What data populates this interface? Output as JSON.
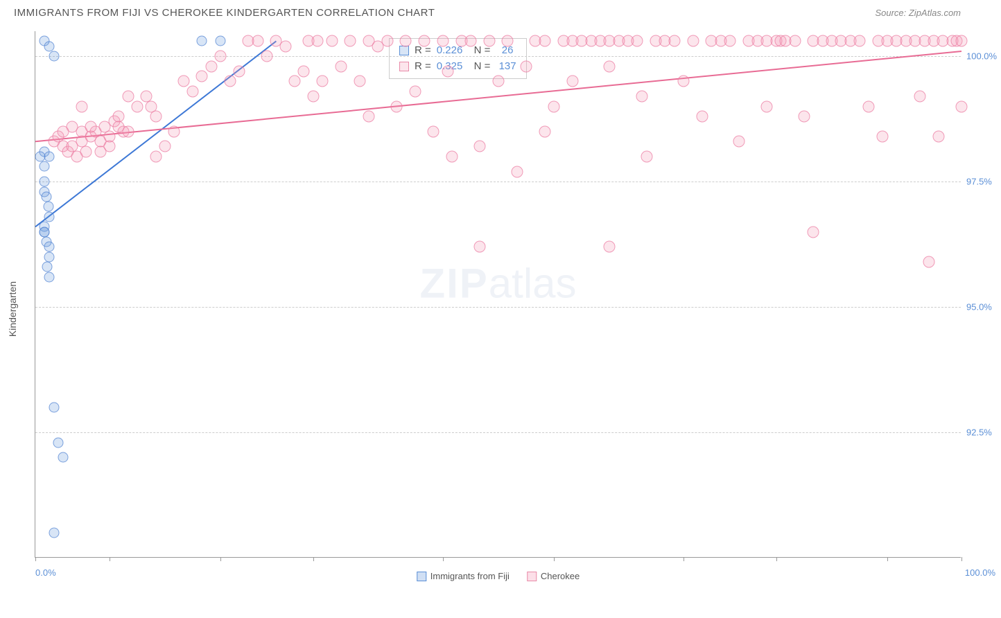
{
  "header": {
    "title": "IMMIGRANTS FROM FIJI VS CHEROKEE KINDERGARTEN CORRELATION CHART",
    "source": "Source: ZipAtlas.com"
  },
  "chart": {
    "type": "scatter",
    "ylabel": "Kindergarten",
    "background_color": "#ffffff",
    "grid_color": "#cccccc",
    "xlim": [
      0,
      100
    ],
    "ylim": [
      90,
      100.5
    ],
    "yticks": [
      {
        "value": 100.0,
        "label": "100.0%"
      },
      {
        "value": 97.5,
        "label": "97.5%"
      },
      {
        "value": 95.0,
        "label": "95.0%"
      },
      {
        "value": 92.5,
        "label": "92.5%"
      }
    ],
    "xtick_positions": [
      0,
      8,
      20,
      30,
      44,
      56,
      70,
      80,
      92,
      100
    ],
    "xaxis_labels": {
      "left": "0.0%",
      "right": "100.0%"
    },
    "marker_radius": 8,
    "series": [
      {
        "id": "fiji",
        "name": "Immigrants from Fiji",
        "color_fill": "rgba(100,150,220,0.25)",
        "color_stroke": "#5b8fd6",
        "R": 0.226,
        "N": 26,
        "trend": {
          "x1": 0,
          "y1": 96.6,
          "x2": 26,
          "y2": 100.3,
          "stroke": "#3d78d6",
          "width": 2
        },
        "points": [
          [
            1,
            100.3
          ],
          [
            1.5,
            100.2
          ],
          [
            2,
            100.0
          ],
          [
            18,
            100.3
          ],
          [
            20,
            100.3
          ],
          [
            1,
            97.5
          ],
          [
            1,
            97.3
          ],
          [
            1.2,
            97.2
          ],
          [
            1.4,
            97.0
          ],
          [
            1,
            96.6
          ],
          [
            1.5,
            96.8
          ],
          [
            1.2,
            96.3
          ],
          [
            1.5,
            96.2
          ],
          [
            1.5,
            96.0
          ],
          [
            1.3,
            95.8
          ],
          [
            1.5,
            95.6
          ],
          [
            1,
            98.1
          ],
          [
            1,
            97.8
          ],
          [
            1.5,
            98.0
          ],
          [
            2,
            93.0
          ],
          [
            2.5,
            92.3
          ],
          [
            3,
            92.0
          ],
          [
            2,
            90.5
          ],
          [
            1,
            96.5
          ],
          [
            1,
            96.5
          ],
          [
            0.5,
            98.0
          ]
        ]
      },
      {
        "id": "cherokee",
        "name": "Cherokee",
        "color_fill": "rgba(245,150,180,0.25)",
        "color_stroke": "#e88aa8",
        "R": 0.325,
        "N": 137,
        "trend": {
          "x1": 0,
          "y1": 98.3,
          "x2": 100,
          "y2": 100.1,
          "stroke": "#e86b94",
          "width": 2
        },
        "points": [
          [
            2,
            98.3
          ],
          [
            2.5,
            98.4
          ],
          [
            3,
            98.2
          ],
          [
            3.5,
            98.1
          ],
          [
            4,
            98.2
          ],
          [
            4.5,
            98.0
          ],
          [
            5,
            98.3
          ],
          [
            5.5,
            98.1
          ],
          [
            6,
            98.4
          ],
          [
            6.5,
            98.5
          ],
          [
            7,
            98.3
          ],
          [
            7.5,
            98.6
          ],
          [
            8,
            98.2
          ],
          [
            8.5,
            98.7
          ],
          [
            9,
            98.8
          ],
          [
            9.5,
            98.5
          ],
          [
            10,
            99.2
          ],
          [
            11,
            99.0
          ],
          [
            12,
            99.2
          ],
          [
            12.5,
            99.0
          ],
          [
            13,
            98.8
          ],
          [
            14,
            98.2
          ],
          [
            15,
            98.5
          ],
          [
            16,
            99.5
          ],
          [
            17,
            99.3
          ],
          [
            18,
            99.6
          ],
          [
            19,
            99.8
          ],
          [
            20,
            100.0
          ],
          [
            21,
            99.5
          ],
          [
            22,
            99.7
          ],
          [
            23,
            100.3
          ],
          [
            24,
            100.3
          ],
          [
            25,
            100.0
          ],
          [
            26,
            100.3
          ],
          [
            27,
            100.2
          ],
          [
            28,
            99.5
          ],
          [
            29,
            99.7
          ],
          [
            29.5,
            100.3
          ],
          [
            30,
            99.2
          ],
          [
            30.5,
            100.3
          ],
          [
            31,
            99.5
          ],
          [
            32,
            100.3
          ],
          [
            33,
            99.8
          ],
          [
            34,
            100.3
          ],
          [
            35,
            99.5
          ],
          [
            36,
            98.8
          ],
          [
            36,
            100.3
          ],
          [
            37,
            100.2
          ],
          [
            38,
            100.3
          ],
          [
            39,
            99.0
          ],
          [
            40,
            100.3
          ],
          [
            41,
            99.3
          ],
          [
            42,
            100.3
          ],
          [
            43,
            98.5
          ],
          [
            44,
            100.3
          ],
          [
            44.5,
            99.7
          ],
          [
            45,
            98.0
          ],
          [
            46,
            100.3
          ],
          [
            47,
            100.3
          ],
          [
            48,
            98.2
          ],
          [
            49,
            100.3
          ],
          [
            50,
            99.5
          ],
          [
            51,
            100.3
          ],
          [
            52,
            97.7
          ],
          [
            53,
            99.8
          ],
          [
            54,
            100.3
          ],
          [
            55,
            98.5
          ],
          [
            55,
            100.3
          ],
          [
            56,
            99.0
          ],
          [
            57,
            100.3
          ],
          [
            58,
            99.5
          ],
          [
            58,
            100.3
          ],
          [
            59,
            100.3
          ],
          [
            60,
            100.3
          ],
          [
            61,
            100.3
          ],
          [
            62,
            99.8
          ],
          [
            62,
            100.3
          ],
          [
            62,
            96.2
          ],
          [
            63,
            100.3
          ],
          [
            64,
            100.3
          ],
          [
            65,
            100.3
          ],
          [
            65.5,
            99.2
          ],
          [
            66,
            98.0
          ],
          [
            67,
            100.3
          ],
          [
            68,
            100.3
          ],
          [
            69,
            100.3
          ],
          [
            70,
            99.5
          ],
          [
            71,
            100.3
          ],
          [
            72,
            98.8
          ],
          [
            73,
            100.3
          ],
          [
            74,
            100.3
          ],
          [
            75,
            100.3
          ],
          [
            76,
            98.3
          ],
          [
            77,
            100.3
          ],
          [
            78,
            100.3
          ],
          [
            79,
            100.3
          ],
          [
            79,
            99.0
          ],
          [
            80,
            100.3
          ],
          [
            80.5,
            100.3
          ],
          [
            81,
            100.3
          ],
          [
            82,
            100.3
          ],
          [
            83,
            98.8
          ],
          [
            84,
            100.3
          ],
          [
            84,
            96.5
          ],
          [
            85,
            100.3
          ],
          [
            86,
            100.3
          ],
          [
            87,
            100.3
          ],
          [
            88,
            100.3
          ],
          [
            89,
            100.3
          ],
          [
            90,
            99.0
          ],
          [
            91,
            100.3
          ],
          [
            91.5,
            98.4
          ],
          [
            92,
            100.3
          ],
          [
            93,
            100.3
          ],
          [
            94,
            100.3
          ],
          [
            95,
            100.3
          ],
          [
            95.5,
            99.2
          ],
          [
            96,
            100.3
          ],
          [
            96.5,
            95.9
          ],
          [
            97,
            100.3
          ],
          [
            97.5,
            98.4
          ],
          [
            98,
            100.3
          ],
          [
            99,
            100.3
          ],
          [
            99.5,
            100.3
          ],
          [
            100,
            100.3
          ],
          [
            100,
            99.0
          ],
          [
            48,
            96.2
          ],
          [
            13,
            98.0
          ],
          [
            4,
            98.6
          ],
          [
            5,
            98.5
          ],
          [
            6,
            98.6
          ],
          [
            3,
            98.5
          ],
          [
            7,
            98.1
          ],
          [
            8,
            98.4
          ],
          [
            9,
            98.6
          ],
          [
            10,
            98.5
          ],
          [
            5,
            99.0
          ]
        ]
      }
    ],
    "legend": [
      {
        "label": "Immigrants from Fiji",
        "fill": "rgba(100,150,220,0.3)",
        "stroke": "#5b8fd6"
      },
      {
        "label": "Cherokee",
        "fill": "rgba(245,150,180,0.3)",
        "stroke": "#e88aa8"
      }
    ]
  },
  "watermark": {
    "prefix": "ZIP",
    "suffix": "atlas"
  }
}
